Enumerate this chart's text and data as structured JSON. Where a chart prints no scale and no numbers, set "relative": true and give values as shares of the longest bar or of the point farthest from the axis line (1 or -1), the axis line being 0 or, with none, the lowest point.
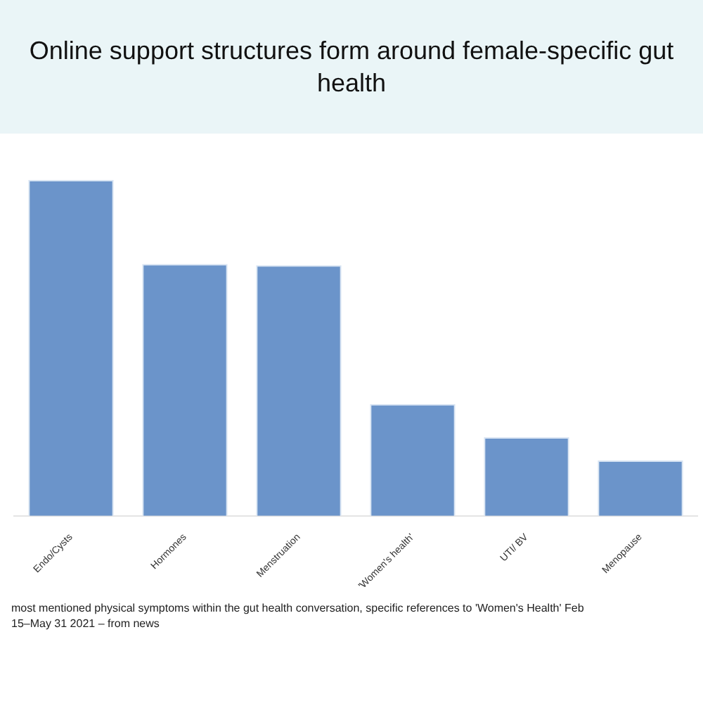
{
  "chart_data": {
    "type": "bar",
    "title": "Online support structures form around female-specific gut health",
    "categories": [
      "Endo/Cysts",
      "Hormones",
      "Menstruation",
      "'Women's health'",
      "UTI/ BV",
      "Menopause"
    ],
    "values": [
      1,
      0.75,
      0.746,
      0.333,
      0.234,
      0.165
    ],
    "color": "#6b94ca",
    "relative": true,
    "annotations": [
      "most mentioned physical symptoms within the gut health conversation, specific references to 'Women's Health' Feb 15–May 31 2021 – from news"
    ]
  }
}
